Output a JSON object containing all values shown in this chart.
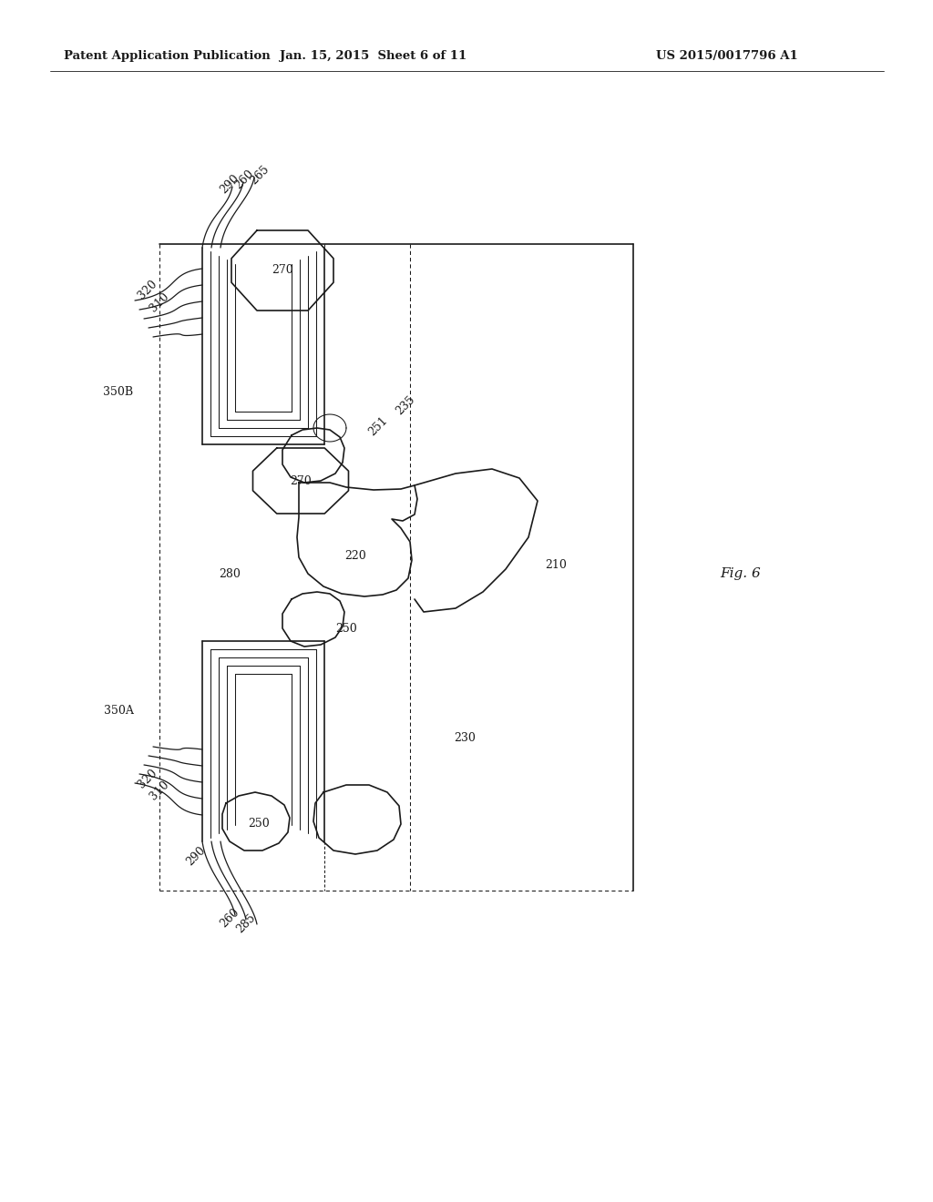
{
  "bg_color": "#ffffff",
  "header_left": "Patent Application Publication",
  "header_mid": "Jan. 15, 2015  Sheet 6 of 11",
  "header_right": "US 2015/0017796 A1",
  "fig_label": "Fig. 6",
  "line_color": "#1a1a1a",
  "text_color": "#1a1a1a",
  "header_fontsize": 9.5,
  "label_fontsize": 9
}
